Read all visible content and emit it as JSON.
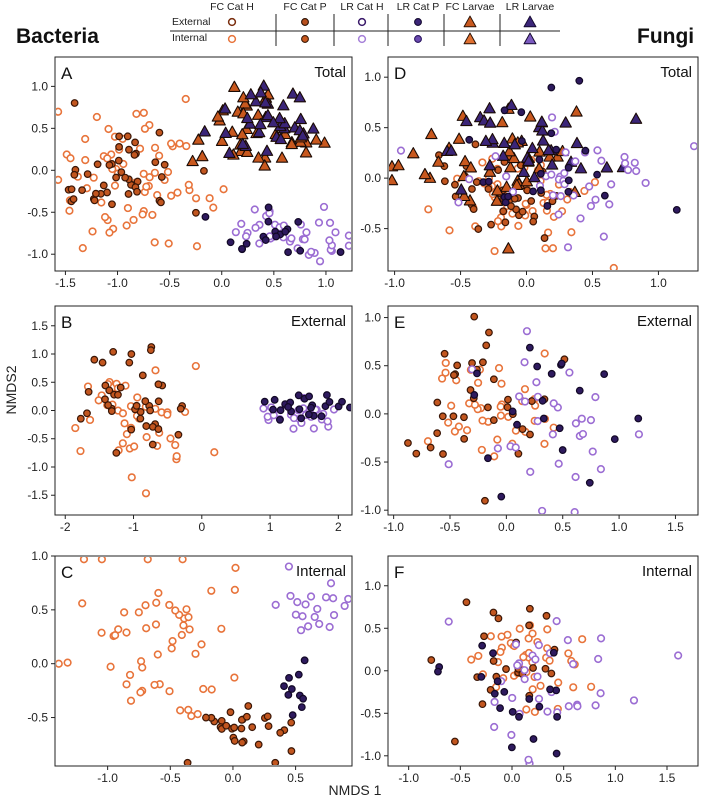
{
  "figure": {
    "left_label": "Bacteria",
    "right_label": "Fungi",
    "xlabel": "NMDS 1",
    "ylabel": "NMDS2"
  },
  "legend": {
    "rows": [
      "External",
      "Internal"
    ],
    "groups": [
      {
        "label": "FC Cat H",
        "color": "#E8743B",
        "marker": "circle",
        "external_fill": "#ffffff",
        "internal_fill": "#ffffff",
        "external_stroke": "#7a2e0e",
        "internal_stroke": "#E8743B"
      },
      {
        "label": "FC Cat P",
        "color": "#E8743B",
        "marker": "circle",
        "external_fill": "#B8501E",
        "internal_fill": "#C8581E",
        "external_stroke": "#2a1206",
        "internal_stroke": "#3a1a08"
      },
      {
        "label": "LR Cat H",
        "color": "#8E5BC8",
        "marker": "circle",
        "external_fill": "#ffffff",
        "internal_fill": "#ffffff",
        "external_stroke": "#3a1a6a",
        "internal_stroke": "#A57FD8"
      },
      {
        "label": "LR Cat P",
        "color": "#5B3A9E",
        "marker": "circle",
        "external_fill": "#3B2578",
        "internal_fill": "#6B4AB0",
        "external_stroke": "#150a30",
        "internal_stroke": "#2a1560"
      },
      {
        "label": "FC Larvae",
        "color": "#E8743B",
        "marker": "triangle",
        "external_fill": "#C8581E",
        "internal_fill": "#E07030",
        "external_stroke": "#2a1206",
        "internal_stroke": "#2a1206"
      },
      {
        "label": "LR Larvae",
        "color": "#6B4AB0",
        "marker": "triangle",
        "external_fill": "#3B2578",
        "internal_fill": "#7B5AC0",
        "external_stroke": "#150a30",
        "internal_stroke": "#150a30"
      }
    ]
  },
  "colors": {
    "FCH": "#E8743B",
    "FCP_fill": "#C2561F",
    "FCP_stroke": "#3a1606",
    "LRH": "#9B6DD3",
    "LRP_fill": "#2E1A5E",
    "LRP_stroke": "#120826",
    "FCL_fill": "#C8581E",
    "LRL_fill": "#3B2578",
    "tri_stroke": "#1a0a04"
  },
  "chart_data": [
    {
      "type": "scatter",
      "label": "A",
      "title": "Total",
      "kingdom": "Bacteria",
      "xlim": [
        -1.6,
        1.25
      ],
      "ylim": [
        -1.2,
        1.35
      ],
      "xticks": [
        -1.5,
        -1.0,
        -0.5,
        0.0,
        0.5,
        1.0
      ],
      "yticks": [
        -1.0,
        -0.5,
        0.0,
        0.5,
        1.0
      ],
      "xtick_labels": [
        "-1.5",
        "-1.0",
        "-0.5",
        "0.0",
        "0.5",
        "1.0"
      ],
      "ytick_labels": [
        "-1.0",
        "-0.5",
        "0.0",
        "0.5",
        "1.0"
      ],
      "series": [
        {
          "group": "FCH",
          "n": 70,
          "cx": -0.85,
          "cy": -0.15,
          "sx": 0.35,
          "sy": 0.38,
          "seed": 11
        },
        {
          "group": "FCP",
          "n": 45,
          "cx": -0.95,
          "cy": -0.1,
          "sx": 0.3,
          "sy": 0.35,
          "seed": 12
        },
        {
          "group": "FCL",
          "n": 40,
          "cx": 0.35,
          "cy": 0.45,
          "sx": 0.28,
          "sy": 0.22,
          "seed": 13
        },
        {
          "group": "LRL",
          "n": 35,
          "cx": 0.45,
          "cy": 0.55,
          "sx": 0.3,
          "sy": 0.2,
          "seed": 14
        },
        {
          "group": "LRH",
          "n": 40,
          "cx": 0.65,
          "cy": -0.8,
          "sx": 0.3,
          "sy": 0.15,
          "seed": 15
        },
        {
          "group": "LRP",
          "n": 18,
          "cx": 0.5,
          "cy": -0.75,
          "sx": 0.25,
          "sy": 0.15,
          "seed": 16
        }
      ]
    },
    {
      "type": "scatter",
      "label": "D",
      "title": "Total",
      "kingdom": "Fungi",
      "xlim": [
        -1.05,
        1.3
      ],
      "ylim": [
        -0.92,
        1.2
      ],
      "xticks": [
        -1.0,
        -0.5,
        0.0,
        0.5,
        1.0
      ],
      "yticks": [
        -0.5,
        0.0,
        0.5,
        1.0
      ],
      "xtick_labels": [
        "-1.0",
        "-0.5",
        "0.0",
        "0.5",
        "1.0"
      ],
      "ytick_labels": [
        "-0.5",
        "0.0",
        "0.5",
        "1.0"
      ],
      "series": [
        {
          "group": "FCH",
          "n": 55,
          "cx": -0.05,
          "cy": -0.25,
          "sx": 0.3,
          "sy": 0.22,
          "seed": 21
        },
        {
          "group": "FCP",
          "n": 40,
          "cx": -0.15,
          "cy": -0.15,
          "sx": 0.3,
          "sy": 0.25,
          "seed": 22
        },
        {
          "group": "FCL",
          "n": 45,
          "cx": -0.2,
          "cy": 0.15,
          "sx": 0.35,
          "sy": 0.3,
          "seed": 23
        },
        {
          "group": "LRL",
          "n": 35,
          "cx": 0.0,
          "cy": 0.25,
          "sx": 0.35,
          "sy": 0.28,
          "seed": 24
        },
        {
          "group": "LRH",
          "n": 40,
          "cx": 0.35,
          "cy": -0.05,
          "sx": 0.4,
          "sy": 0.3,
          "seed": 25
        },
        {
          "group": "LRP",
          "n": 25,
          "cx": 0.15,
          "cy": 0.1,
          "sx": 0.35,
          "sy": 0.3,
          "seed": 26
        }
      ]
    },
    {
      "type": "scatter",
      "label": "B",
      "title": "External",
      "kingdom": "Bacteria",
      "xlim": [
        -2.15,
        2.2
      ],
      "ylim": [
        -1.85,
        1.85
      ],
      "xticks": [
        -2,
        -1,
        0,
        1,
        2
      ],
      "yticks": [
        -1.5,
        -1.0,
        -0.5,
        0.0,
        0.5,
        1.0,
        1.5
      ],
      "xtick_labels": [
        "-2",
        "-1",
        "0",
        "1",
        "2"
      ],
      "ytick_labels": [
        "-1.5",
        "-1.0",
        "-0.5",
        "0.0",
        "0.5",
        "1.0",
        "1.5"
      ],
      "series": [
        {
          "group": "FCH",
          "n": 45,
          "cx": -1.0,
          "cy": -0.05,
          "sx": 0.45,
          "sy": 0.55,
          "seed": 31
        },
        {
          "group": "FCP",
          "n": 40,
          "cx": -1.05,
          "cy": 0.05,
          "sx": 0.4,
          "sy": 0.5,
          "seed": 32
        },
        {
          "group": "LRH",
          "n": 30,
          "cx": 1.45,
          "cy": -0.05,
          "sx": 0.35,
          "sy": 0.15,
          "seed": 33
        },
        {
          "group": "LRP",
          "n": 25,
          "cx": 1.4,
          "cy": 0.05,
          "sx": 0.4,
          "sy": 0.15,
          "seed": 34
        }
      ]
    },
    {
      "type": "scatter",
      "label": "E",
      "title": "External",
      "kingdom": "Fungi",
      "xlim": [
        -1.05,
        1.7
      ],
      "ylim": [
        -1.05,
        1.12
      ],
      "xticks": [
        -1.0,
        -0.5,
        0.0,
        0.5,
        1.0,
        1.5
      ],
      "yticks": [
        -1.0,
        -0.5,
        0.0,
        0.5,
        1.0
      ],
      "xtick_labels": [
        "-1.0",
        "-0.5",
        "0.0",
        "0.5",
        "1.0",
        "1.5"
      ],
      "ytick_labels": [
        "-1.0",
        "-0.5",
        "0.0",
        "0.5",
        "1.0"
      ],
      "series": [
        {
          "group": "FCH",
          "n": 40,
          "cx": -0.2,
          "cy": 0.0,
          "sx": 0.3,
          "sy": 0.28,
          "seed": 41
        },
        {
          "group": "FCP",
          "n": 35,
          "cx": -0.3,
          "cy": 0.05,
          "sx": 0.3,
          "sy": 0.3,
          "seed": 42
        },
        {
          "group": "LRH",
          "n": 30,
          "cx": 0.4,
          "cy": -0.15,
          "sx": 0.4,
          "sy": 0.4,
          "seed": 43
        },
        {
          "group": "LRP",
          "n": 20,
          "cx": 0.3,
          "cy": 0.2,
          "sx": 0.4,
          "sy": 0.4,
          "seed": 44
        }
      ]
    },
    {
      "type": "scatter",
      "label": "C",
      "title": "Internal",
      "kingdom": "Bacteria",
      "xlim": [
        -1.42,
        0.95
      ],
      "ylim": [
        -0.95,
        1.0
      ],
      "xticks": [
        -1.0,
        -0.5,
        0.0,
        0.5
      ],
      "yticks": [
        -0.5,
        0.0,
        0.5,
        1.0
      ],
      "xtick_labels": [
        "-1.0",
        "-0.5",
        "0.0",
        "0.5"
      ],
      "ytick_labels": [
        "-0.5",
        "0.0",
        "0.5",
        "1.0"
      ],
      "series": [
        {
          "group": "FCH",
          "n": 55,
          "cx": -0.65,
          "cy": 0.2,
          "sx": 0.32,
          "sy": 0.38,
          "seed": 51
        },
        {
          "group": "FCP",
          "n": 30,
          "cx": 0.05,
          "cy": -0.6,
          "sx": 0.2,
          "sy": 0.12,
          "seed": 52
        },
        {
          "group": "LRH",
          "n": 20,
          "cx": 0.65,
          "cy": 0.55,
          "sx": 0.18,
          "sy": 0.12,
          "seed": 53
        },
        {
          "group": "LRP",
          "n": 10,
          "cx": 0.5,
          "cy": -0.25,
          "sx": 0.06,
          "sy": 0.2,
          "seed": 54
        }
      ]
    },
    {
      "type": "scatter",
      "label": "F",
      "title": "Internal",
      "kingdom": "Fungi",
      "xlim": [
        -1.2,
        1.8
      ],
      "ylim": [
        -1.12,
        1.35
      ],
      "xticks": [
        -1.0,
        -0.5,
        0.0,
        0.5,
        1.0,
        1.5
      ],
      "yticks": [
        -1.0,
        -0.5,
        0.0,
        0.5,
        1.0
      ],
      "xtick_labels": [
        "-1.0",
        "-0.5",
        "0.0",
        "0.5",
        "1.0",
        "1.5"
      ],
      "ytick_labels": [
        "-1.0",
        "-0.5",
        "0.0",
        "0.5",
        "1.0"
      ],
      "series": [
        {
          "group": "FCH",
          "n": 45,
          "cx": 0.1,
          "cy": 0.1,
          "sx": 0.3,
          "sy": 0.28,
          "seed": 61
        },
        {
          "group": "FCP",
          "n": 25,
          "cx": -0.15,
          "cy": 0.05,
          "sx": 0.35,
          "sy": 0.4,
          "seed": 62
        },
        {
          "group": "LRH",
          "n": 35,
          "cx": 0.3,
          "cy": -0.2,
          "sx": 0.5,
          "sy": 0.45,
          "seed": 63
        },
        {
          "group": "LRP",
          "n": 20,
          "cx": 0.0,
          "cy": -0.3,
          "sx": 0.35,
          "sy": 0.35,
          "seed": 64
        }
      ]
    }
  ]
}
